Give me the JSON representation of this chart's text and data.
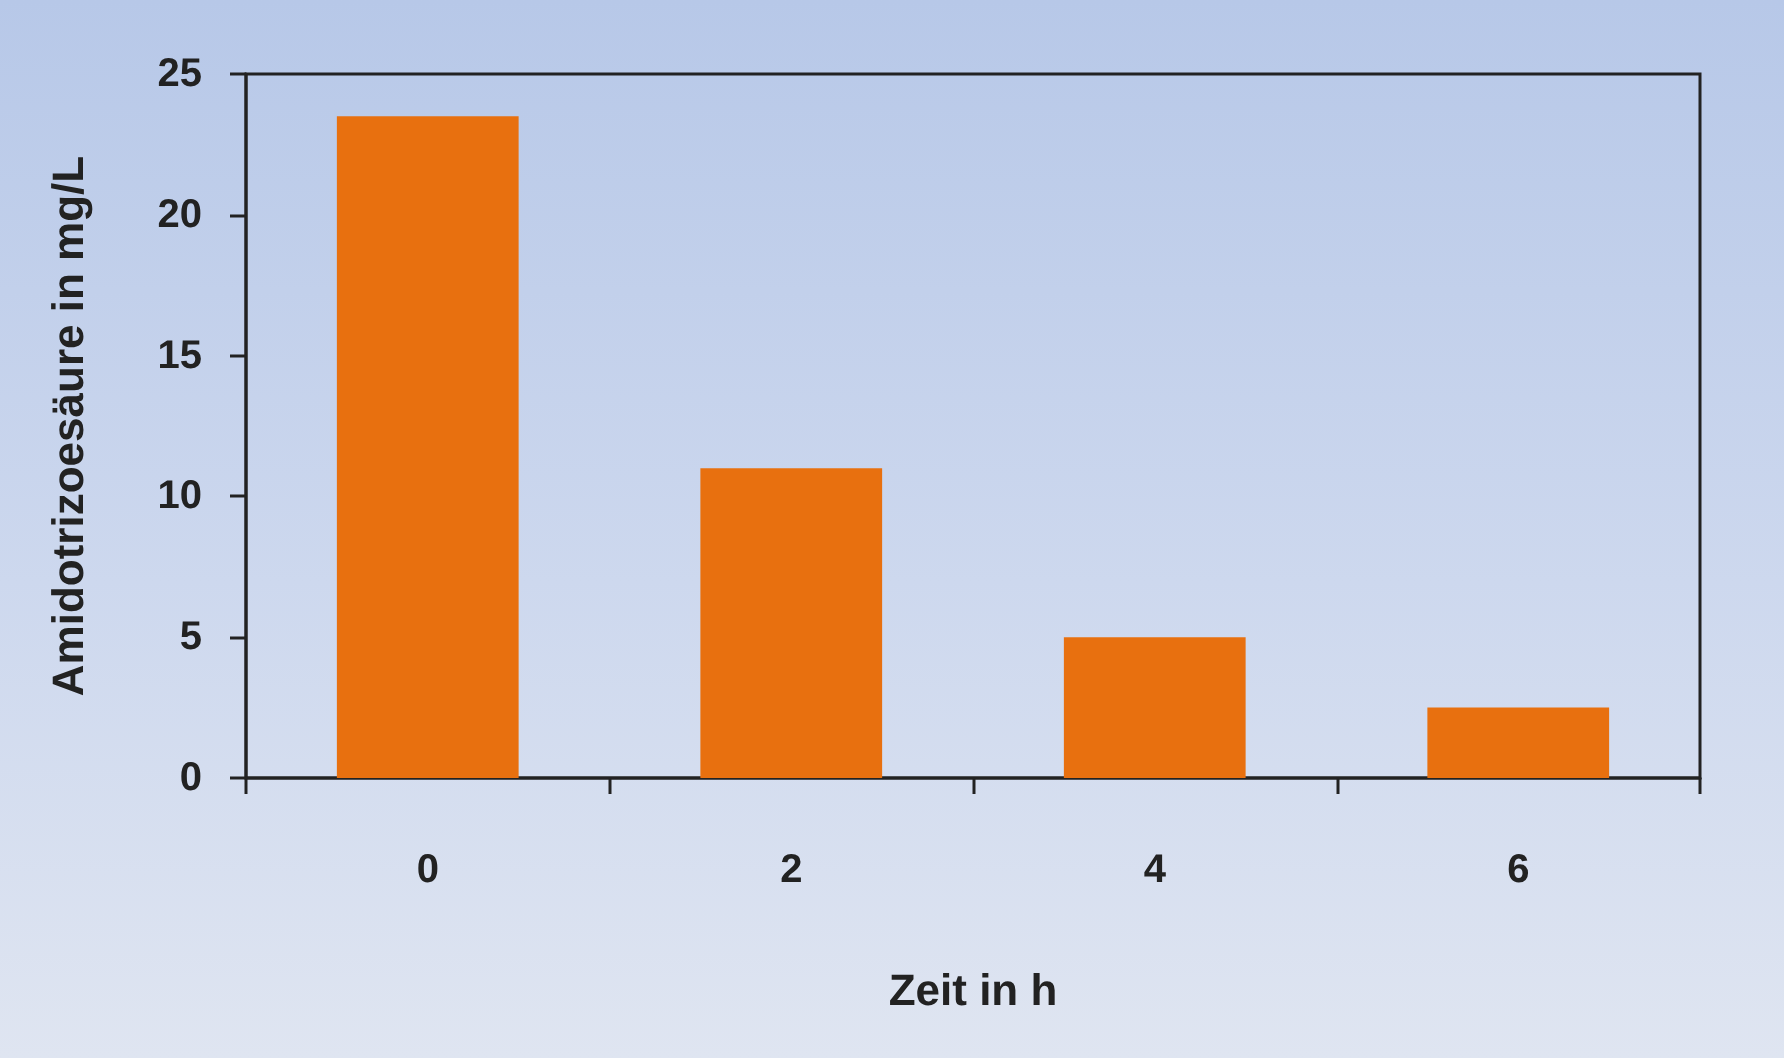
{
  "chart_data": {
    "type": "bar",
    "xlabel": "Zeit in h",
    "ylabel": "Amidotrizoesäure in mg/L",
    "categories": [
      "0",
      "2",
      "4",
      "6"
    ],
    "values": [
      23.5,
      11,
      5,
      2.5
    ],
    "color": "#e8700f",
    "ylim": [
      0,
      25
    ],
    "yticks": [
      0,
      5,
      10,
      15,
      20,
      25
    ]
  }
}
